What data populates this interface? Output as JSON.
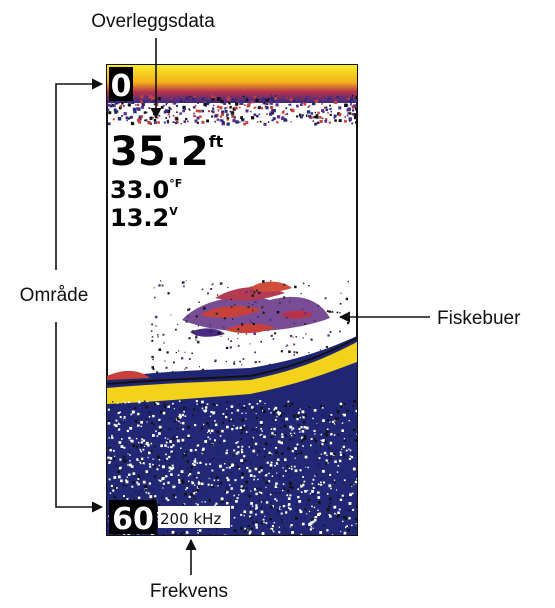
{
  "callouts": {
    "overlay": "Overleggsdata",
    "range": "Område",
    "fish": "Fiskebuer",
    "frequency": "Frekvens"
  },
  "sonar": {
    "depth_top": "0",
    "depth_bottom": "60",
    "frequency": "200 kHz",
    "overlay": {
      "depth_value": "35.2",
      "depth_unit": "ft",
      "temp_value": "33.0",
      "temp_unit": "°F",
      "voltage_value": "13.2",
      "voltage_unit": "V"
    }
  },
  "colors": {
    "surface_yellow": "#f6e21c",
    "bottom_line": "#f2d21a",
    "ground_blue": "#20267a",
    "fish_red": "#c8403a",
    "fish_purple": "#5a2f86",
    "text": "#111111"
  }
}
